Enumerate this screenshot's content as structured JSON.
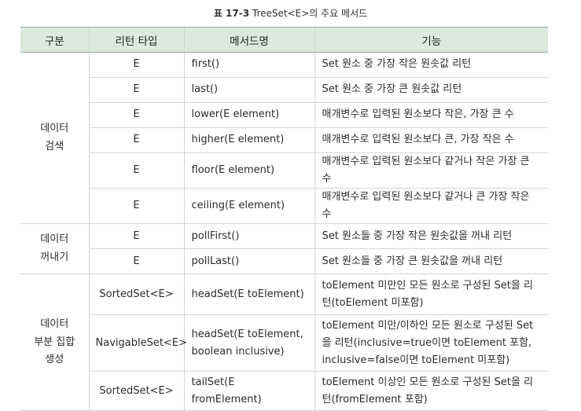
{
  "caption": {
    "label": "표 17-3",
    "text": "TreeSet<E>의 주요 메서드"
  },
  "table": {
    "headers": [
      "구분",
      "리턴 타입",
      "메서드명",
      "기능"
    ],
    "groups": {
      "search": [
        "데이터",
        "검색"
      ],
      "poll": [
        "데이터",
        "꺼내기"
      ],
      "subset": [
        "데이터",
        "부분 집합",
        "생성"
      ]
    },
    "rows": [
      {
        "ret": "E",
        "method": [
          "first()"
        ],
        "desc": [
          "Set 원소 중 가장 작은 원솟값 리턴"
        ]
      },
      {
        "ret": "E",
        "method": [
          "last()"
        ],
        "desc": [
          "Set 원소 중 가장 큰 원솟값 리턴"
        ]
      },
      {
        "ret": "E",
        "method": [
          "lower(E element)"
        ],
        "desc": [
          "매개변수로 입력된 원소보다 작은, 가장 큰 수"
        ]
      },
      {
        "ret": "E",
        "method": [
          "higher(E element)"
        ],
        "desc": [
          "매개변수로 입력된 원소보다 큰, 가장 작은 수"
        ]
      },
      {
        "ret": "E",
        "method": [
          "floor(E element)"
        ],
        "desc": [
          "매개변수로 입력된 원소보다 같거나 작은 가장 큰 수"
        ]
      },
      {
        "ret": "E",
        "method": [
          "ceiling(E element)"
        ],
        "desc": [
          "매개변수로 입력된 원소보다 같거나 큰 가장 작은 수"
        ]
      },
      {
        "ret": "E",
        "method": [
          "pollFirst()"
        ],
        "desc": [
          "Set 원소들 중 가장 작은 원솟값을 꺼내 리턴"
        ]
      },
      {
        "ret": "E",
        "method": [
          "pollLast()"
        ],
        "desc": [
          "Set 원소들 중 가장 큰 원솟값을 꺼내 리턴"
        ]
      },
      {
        "ret": "SortedSet<E>",
        "method": [
          "headSet(E toElement)"
        ],
        "desc": [
          "toElement 미만인 모든 원소로 구성된 Set을 리",
          "턴(toElement 미포함)"
        ]
      },
      {
        "ret": "NavigableSet<E>",
        "method": [
          "headSet(E toElement,",
          "boolean inclusive)"
        ],
        "desc": [
          "toElement 미만/이하인 모든 원소로 구성된 Set",
          "을 리턴(inclusive=true이면 toElement 포함,",
          "inclusive=false이면 toElement 미포함)"
        ]
      },
      {
        "ret": "SortedSet<E>",
        "method": [
          "tailSet(E fromElement)"
        ],
        "desc": [
          "toElement 이상인 모든 원소로 구성된 Set을 리",
          "턴(fromElement 포함)"
        ]
      }
    ]
  }
}
